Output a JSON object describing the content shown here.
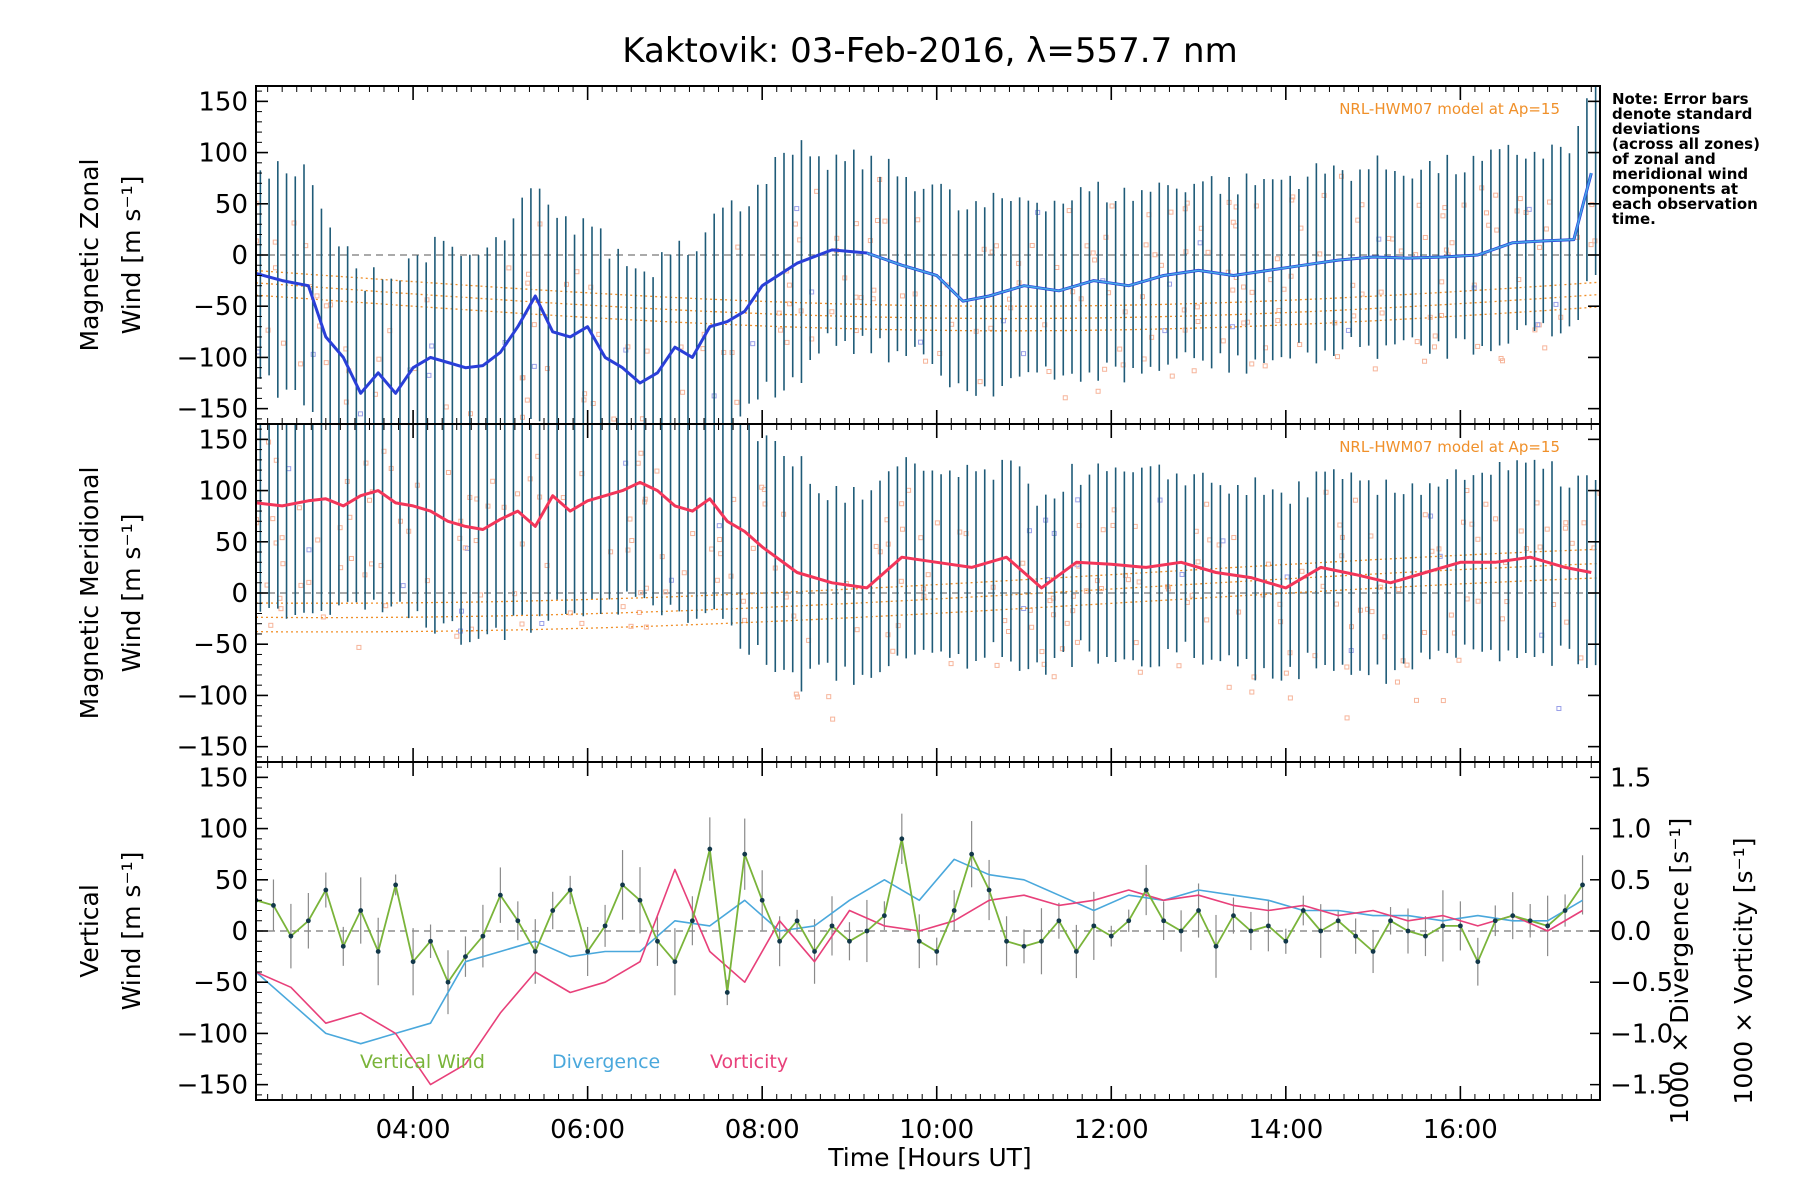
{
  "title": "Kaktovik: 03-Feb-2016, λ=557.7 nm",
  "note_lines": [
    "Note: Error bars",
    "denote standard",
    "deviations",
    "(across all zones)",
    "of zonal and",
    "meridional wind",
    "components at",
    "each observation",
    "time."
  ],
  "model_label": "NRL-HWM07 model at Ap=15",
  "colors": {
    "zonal": "#2a3fd8",
    "zonal_light": "#46a8e8",
    "meridional": "#f2365a",
    "vertical": "#7ab43a",
    "divergence": "#4aa8dc",
    "vorticity": "#e8407a",
    "errorbar": "#1f5b78",
    "model": "#f0902a",
    "zone_points": "#f6b49a"
  },
  "axes": {
    "xlabel": "Time [Hours UT]",
    "xticks": [
      "04:00",
      "06:00",
      "08:00",
      "10:00",
      "12:00",
      "14:00",
      "16:00"
    ],
    "xlim": [
      2.2,
      17.6
    ],
    "ylim": [
      -165,
      165
    ],
    "yticks": [
      "150",
      "100",
      "50",
      "0",
      "−50",
      "−100",
      "−150"
    ],
    "panel1_ylabel": [
      "Magnetic Zonal",
      "Wind [m s⁻¹]"
    ],
    "panel2_ylabel": [
      "Magnetic Meridional",
      "Wind [m s⁻¹]"
    ],
    "panel3_ylabel": [
      "Vertical",
      "Wind [m s⁻¹]"
    ],
    "right_yticks": [
      "1.5",
      "1.0",
      "0.5",
      "0.0",
      "−0.5",
      "−1.0",
      "−1.5"
    ],
    "right_ylabel_div": "1000 × Divergence [s⁻¹]",
    "right_ylabel_vort": "1000 × Vorticity [s⁻¹]",
    "right_ylim": [
      -1.65,
      1.65
    ]
  },
  "legend": {
    "vertical": "Vertical Wind",
    "divergence": "Divergence",
    "vorticity": "Vorticity"
  },
  "chart_data": [
    {
      "type": "line",
      "title": "Kaktovik: 03-Feb-2016, λ=557.7 nm",
      "ylabel": "Magnetic Zonal Wind [m s⁻¹]",
      "x": [
        2.2,
        2.5,
        2.8,
        3.0,
        3.2,
        3.4,
        3.6,
        3.8,
        4.0,
        4.2,
        4.4,
        4.6,
        4.8,
        5.0,
        5.2,
        5.4,
        5.6,
        5.8,
        6.0,
        6.2,
        6.4,
        6.6,
        6.8,
        7.0,
        7.2,
        7.4,
        7.6,
        7.8,
        8.0,
        8.4,
        8.8,
        9.2,
        9.6,
        10.0,
        10.3,
        10.6,
        11.0,
        11.4,
        11.8,
        12.2,
        12.6,
        13.0,
        13.4,
        13.8,
        14.2,
        14.6,
        15.0,
        15.4,
        15.8,
        16.2,
        16.6,
        17.0,
        17.3,
        17.5
      ],
      "series": [
        {
          "values": [
            -18,
            -25,
            -30,
            -80,
            -100,
            -135,
            -115,
            -135,
            -110,
            -100,
            -105,
            -110,
            -108,
            -95,
            -70,
            -40,
            -75,
            -80,
            -70,
            -100,
            -110,
            -125,
            -115,
            -90,
            -100,
            -70,
            -65,
            -55,
            -30,
            -8,
            5,
            2,
            -10,
            -20,
            -45,
            -40,
            -30,
            -35,
            -25,
            -30,
            -20,
            -15,
            -20,
            -15,
            -10,
            -5,
            -2,
            -3,
            -2,
            0,
            12,
            14,
            15,
            80
          ]
        }
      ],
      "ylim": [
        -165,
        165
      ]
    },
    {
      "type": "line",
      "ylabel": "Magnetic Meridional Wind [m s⁻¹]",
      "x": [
        2.2,
        2.5,
        2.8,
        3.0,
        3.2,
        3.4,
        3.6,
        3.8,
        4.0,
        4.2,
        4.4,
        4.6,
        4.8,
        5.0,
        5.2,
        5.4,
        5.6,
        5.8,
        6.0,
        6.2,
        6.4,
        6.6,
        6.8,
        7.0,
        7.2,
        7.4,
        7.6,
        7.8,
        8.0,
        8.4,
        8.8,
        9.2,
        9.6,
        10.0,
        10.4,
        10.8,
        11.2,
        11.6,
        12.0,
        12.4,
        12.8,
        13.2,
        13.6,
        14.0,
        14.4,
        14.8,
        15.2,
        15.6,
        16.0,
        16.4,
        16.8,
        17.2,
        17.5
      ],
      "series": [
        {
          "values": [
            88,
            85,
            90,
            92,
            85,
            95,
            100,
            88,
            85,
            80,
            70,
            65,
            62,
            72,
            80,
            65,
            95,
            80,
            90,
            95,
            100,
            108,
            100,
            85,
            80,
            92,
            70,
            60,
            45,
            20,
            10,
            5,
            35,
            30,
            25,
            35,
            5,
            30,
            28,
            25,
            30,
            20,
            15,
            5,
            25,
            18,
            10,
            20,
            30,
            30,
            35,
            25,
            20
          ]
        }
      ],
      "ylim": [
        -165,
        165
      ]
    },
    {
      "type": "line",
      "ylabel": "Vertical Wind [m s⁻¹]",
      "x": [
        2.2,
        2.4,
        2.6,
        2.8,
        3.0,
        3.2,
        3.4,
        3.6,
        3.8,
        4.0,
        4.2,
        4.4,
        4.6,
        4.8,
        5.0,
        5.2,
        5.4,
        5.6,
        5.8,
        6.0,
        6.2,
        6.4,
        6.6,
        6.8,
        7.0,
        7.2,
        7.4,
        7.6,
        7.8,
        8.0,
        8.2,
        8.4,
        8.6,
        8.8,
        9.0,
        9.2,
        9.4,
        9.6,
        9.8,
        10.0,
        10.2,
        10.4,
        10.6,
        10.8,
        11.0,
        11.2,
        11.4,
        11.6,
        11.8,
        12.0,
        12.2,
        12.4,
        12.6,
        12.8,
        13.0,
        13.2,
        13.4,
        13.6,
        13.8,
        14.0,
        14.2,
        14.4,
        14.6,
        14.8,
        15.0,
        15.2,
        15.4,
        15.6,
        15.8,
        16.0,
        16.2,
        16.4,
        16.6,
        16.8,
        17.0,
        17.2,
        17.4
      ],
      "series": [
        {
          "name": "Vertical Wind",
          "values": [
            30,
            25,
            -5,
            10,
            40,
            -15,
            20,
            -20,
            45,
            -30,
            -10,
            -50,
            -25,
            -5,
            35,
            10,
            -20,
            20,
            40,
            -20,
            5,
            45,
            30,
            -10,
            -30,
            10,
            80,
            -60,
            75,
            30,
            -10,
            10,
            -20,
            5,
            -10,
            0,
            15,
            90,
            -10,
            -20,
            20,
            75,
            40,
            -10,
            -15,
            -10,
            10,
            -20,
            5,
            -5,
            10,
            40,
            10,
            0,
            20,
            -15,
            15,
            0,
            5,
            -10,
            20,
            0,
            10,
            -5,
            -20,
            10,
            0,
            -5,
            5,
            5,
            -30,
            10,
            15,
            10,
            5,
            20,
            45
          ]
        }
      ],
      "ylim": [
        -165,
        165
      ]
    },
    {
      "type": "line",
      "ylabel": "1000 × Divergence [s⁻¹]",
      "x": [
        2.2,
        2.6,
        3.0,
        3.4,
        3.8,
        4.2,
        4.6,
        5.0,
        5.4,
        5.8,
        6.2,
        6.6,
        7.0,
        7.4,
        7.8,
        8.2,
        8.6,
        9.0,
        9.4,
        9.8,
        10.2,
        10.6,
        11.0,
        11.4,
        11.8,
        12.2,
        12.6,
        13.0,
        13.4,
        13.8,
        14.2,
        14.6,
        15.0,
        15.4,
        15.8,
        16.2,
        16.6,
        17.0,
        17.4
      ],
      "series": [
        {
          "name": "Divergence",
          "values": [
            -0.4,
            -0.7,
            -1.0,
            -1.1,
            -1.0,
            -0.9,
            -0.3,
            -0.2,
            -0.1,
            -0.25,
            -0.2,
            -0.2,
            0.1,
            0.05,
            0.3,
            0.0,
            0.05,
            0.3,
            0.5,
            0.3,
            0.7,
            0.55,
            0.5,
            0.35,
            0.2,
            0.35,
            0.3,
            0.4,
            0.35,
            0.3,
            0.2,
            0.2,
            0.15,
            0.15,
            0.1,
            0.15,
            0.1,
            0.1,
            0.3
          ]
        },
        {
          "name": "Vorticity",
          "values": [
            -0.4,
            -0.55,
            -0.9,
            -0.8,
            -1.0,
            -1.5,
            -1.3,
            -0.8,
            -0.4,
            -0.6,
            -0.5,
            -0.3,
            0.6,
            -0.2,
            -0.5,
            0.1,
            -0.3,
            0.2,
            0.05,
            0.0,
            0.1,
            0.3,
            0.35,
            0.25,
            0.3,
            0.4,
            0.3,
            0.35,
            0.25,
            0.2,
            0.25,
            0.15,
            0.2,
            0.1,
            0.15,
            0.05,
            0.15,
            0.0,
            0.2
          ]
        }
      ],
      "ylim": [
        -1.65,
        1.65
      ]
    }
  ]
}
